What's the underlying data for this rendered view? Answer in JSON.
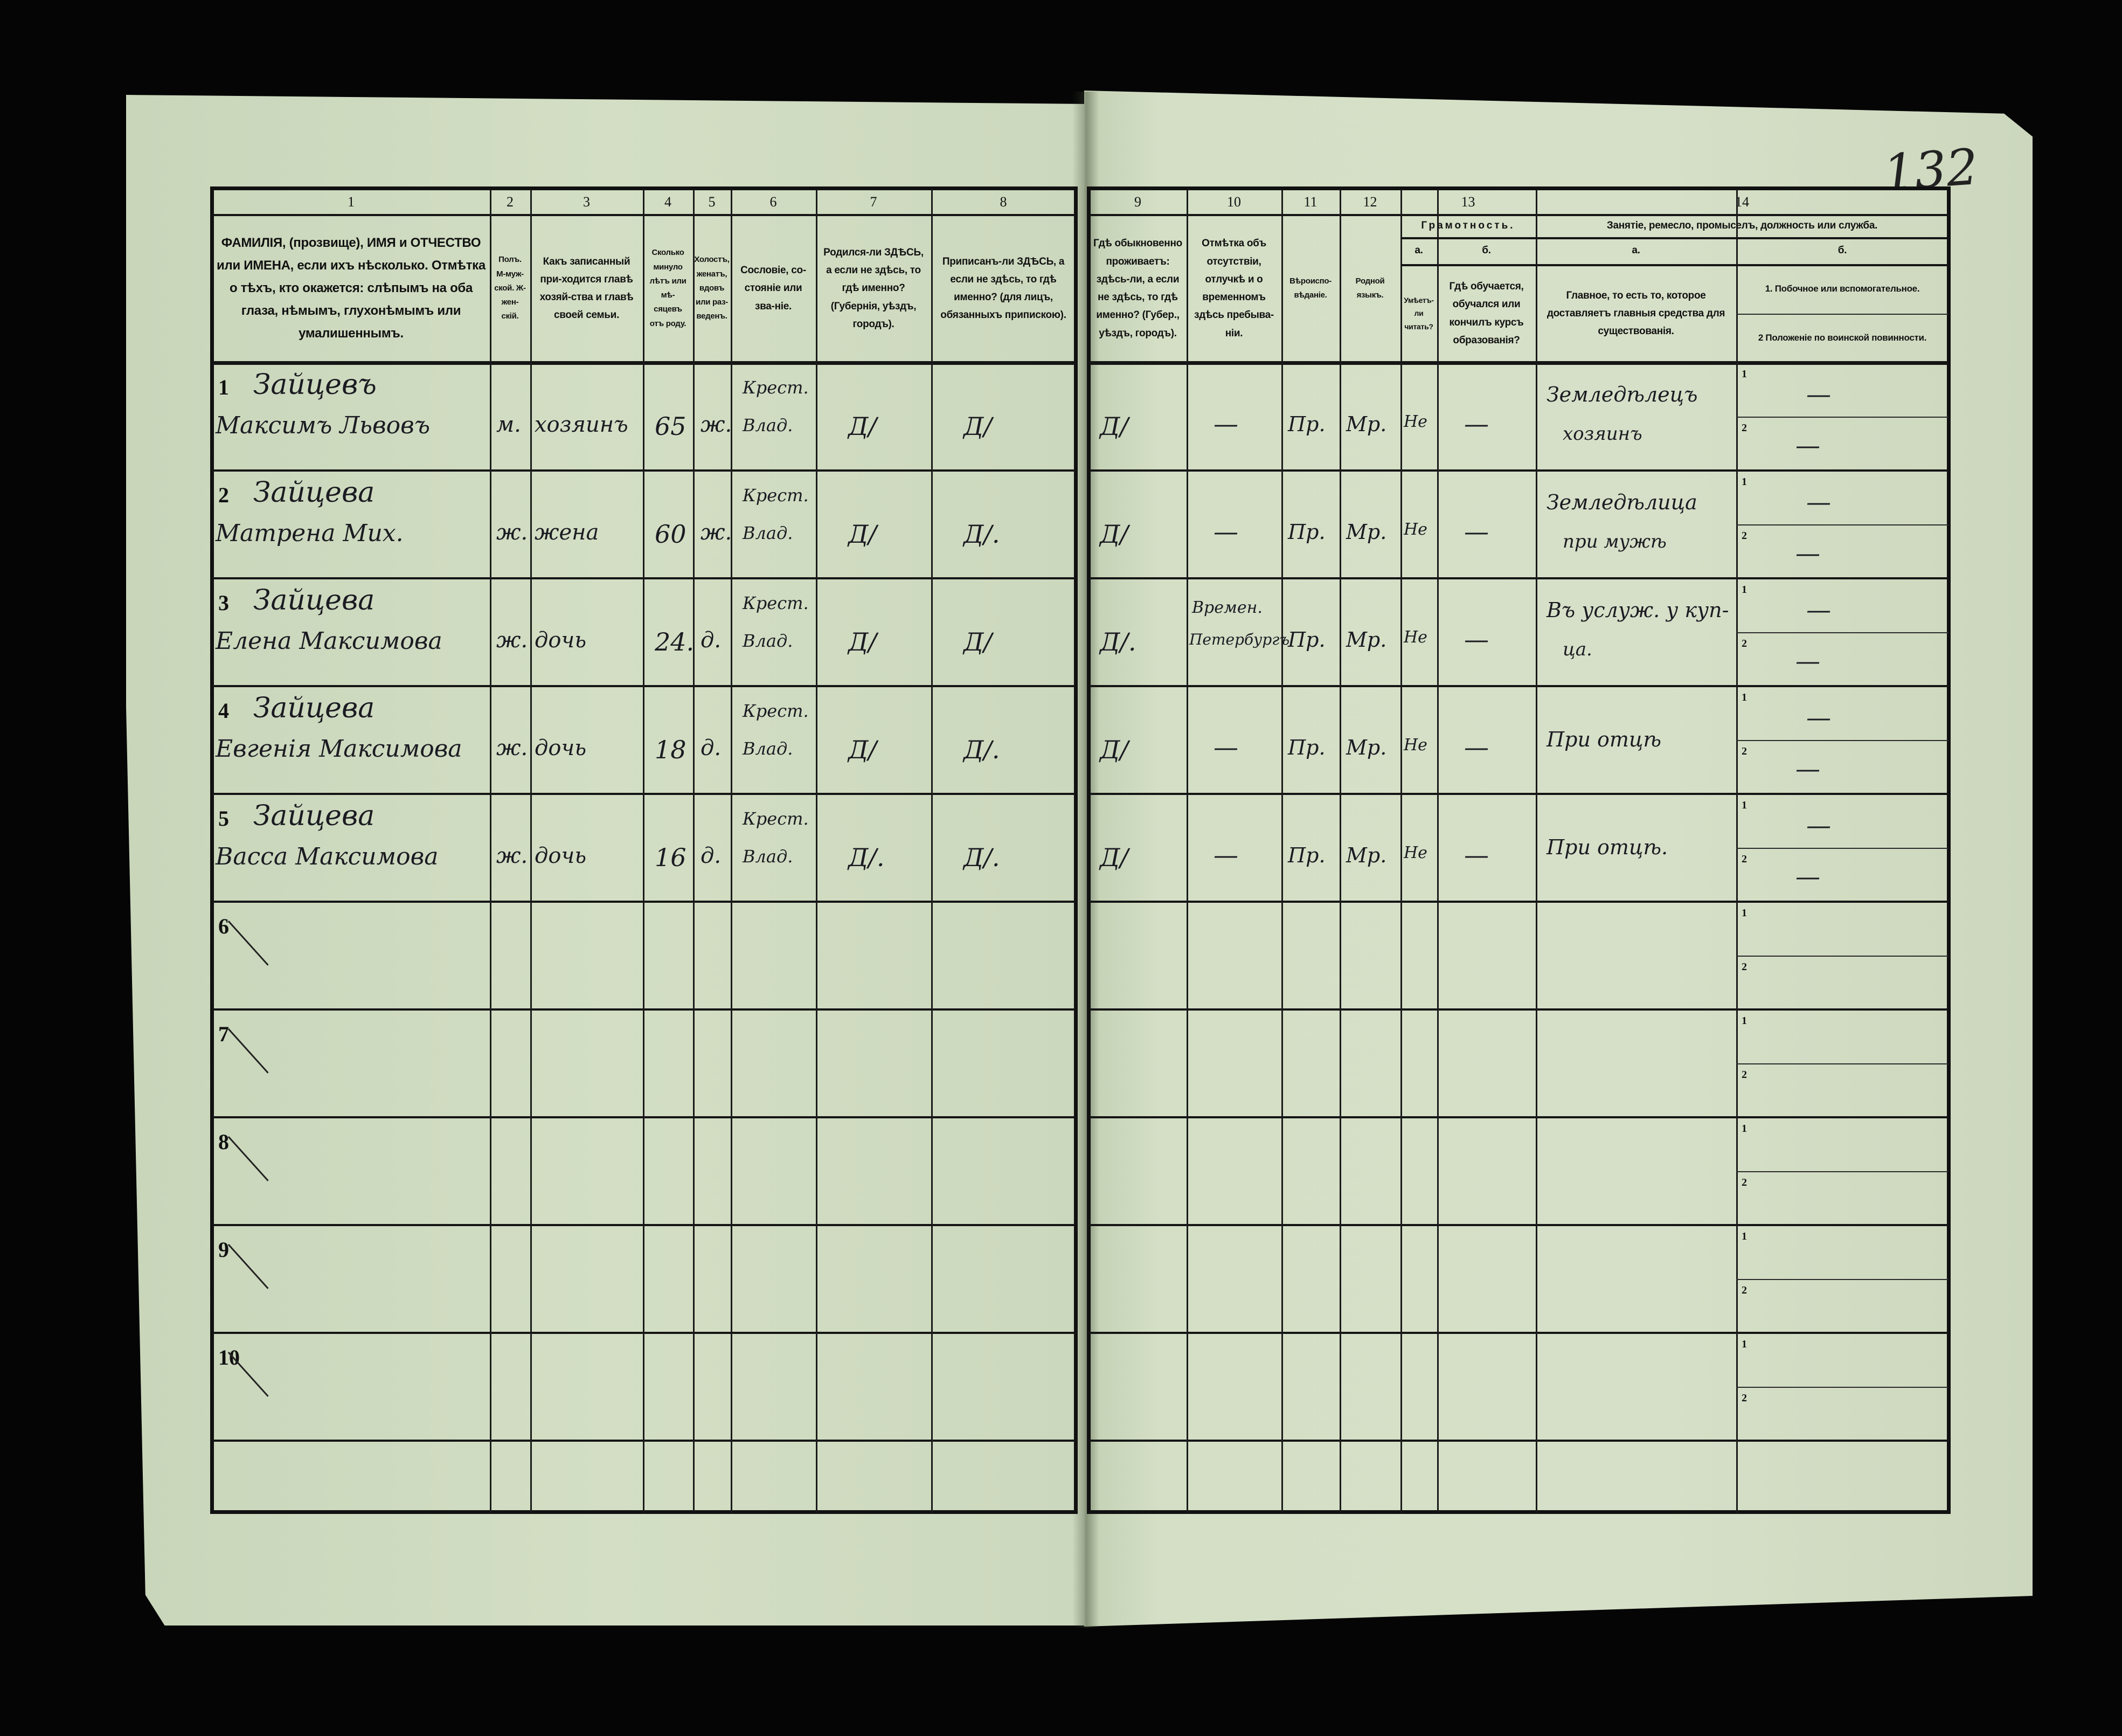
{
  "page_number": "132",
  "header": {
    "columns": [
      {
        "num": "1",
        "text": "ФАМИЛІЯ, (прозвище), ИМЯ и ОТЧЕСТВО или ИМЕНА, если ихъ нѣсколько. Отмѣтка о тѣхъ, кто окажется: слѣпымъ на оба глаза, нѣмымъ, глухонѣмымъ или умалишеннымъ."
      },
      {
        "num": "2",
        "text": "Полъ. М-муж-ской. Ж-жен-скій."
      },
      {
        "num": "3",
        "text": "Какъ записанный при-ходится главѣ хозяй-ства и главѣ своей семьи."
      },
      {
        "num": "4",
        "text": "Сколько минуло лѣтъ или мѣ-сяцевъ отъ роду."
      },
      {
        "num": "5",
        "text": "Холостъ, женатъ, вдовъ или раз-веденъ."
      },
      {
        "num": "6",
        "text": "Сословіе, со-стояніе или зва-ніе."
      },
      {
        "num": "7",
        "text": "Родился-ли ЗДѢСЬ, а если не здѣсь, то гдѣ именно? (Губернія, уѣздъ, городъ)."
      },
      {
        "num": "8",
        "text": "Приписанъ-ли ЗДѢСЬ, а если не здѣсь, то гдѣ именно? (для лицъ, обязанныхъ припискою)."
      },
      {
        "num": "9",
        "text": "Гдѣ обыкновенно проживаетъ: здѣсь-ли, а если не здѣсь, то гдѣ именно? (Губер., уѣздъ, городъ)."
      },
      {
        "num": "10",
        "text": "Отмѣтка объ отсутствіи, отлучкѣ и о временномъ здѣсь пребыва-ніи."
      },
      {
        "num": "11",
        "text": "Вѣроиспо-вѣданіе."
      },
      {
        "num": "12",
        "text": "Родной языкъ."
      }
    ],
    "col13": {
      "num": "13",
      "title": "Грамотность.",
      "a_label": "а.",
      "a_text": "Умѣетъ-ли читать?",
      "b_label": "б.",
      "b_text": "Гдѣ обучается, обучался или кончилъ курсъ образованія?"
    },
    "col14": {
      "num": "14",
      "title": "Занятіе, ремесло, промыселъ, должность или служба.",
      "a_label": "а.",
      "a_text": "Главное, то есть то, которое доставляетъ главныя средства для существованія.",
      "b_label": "б.",
      "b1_text": "1. Побочное или вспомогательное.",
      "b2_text": "2 Положеніе по воинской повинности."
    }
  },
  "sub_labels": [
    "1",
    "2"
  ],
  "rows": [
    {
      "n": "1",
      "surname": "Зайцевъ",
      "name": "Максимъ Львовъ",
      "sex": "м.",
      "relation": "хозяинъ",
      "age": "65",
      "marital": "ж.",
      "estate_1": "Крест.",
      "estate_2": "Влад.",
      "born": "Д/",
      "registered": "Д/",
      "residence": "Д/",
      "absence": "—",
      "religion": "Пр.",
      "language": "Мр.",
      "literate": "Не",
      "education": "—",
      "occupation_1": "Земледѣлецъ",
      "occupation_2": "хозяинъ",
      "side": "—",
      "military": "—"
    },
    {
      "n": "2",
      "surname": "Зайцева",
      "name": "Матрена Мих.",
      "sex": "ж.",
      "relation": "жена",
      "age": "60",
      "marital": "ж.",
      "estate_1": "Крест.",
      "estate_2": "Влад.",
      "born": "Д/",
      "registered": "Д/.",
      "residence": "Д/",
      "absence": "—",
      "religion": "Пр.",
      "language": "Мр.",
      "literate": "Не",
      "education": "—",
      "occupation_1": "Земледѣлица",
      "occupation_2": "при мужѣ",
      "side": "—",
      "military": "—"
    },
    {
      "n": "3",
      "surname": "Зайцева",
      "name": "Елена Максимова",
      "sex": "ж.",
      "relation": "дочь",
      "age": "24.",
      "marital": "д.",
      "estate_1": "Крест.",
      "estate_2": "Влад.",
      "born": "Д/",
      "registered": "Д/",
      "residence": "Д/.",
      "absence_1": "Времен.",
      "absence_2": "Петербургъ",
      "religion": "Пр.",
      "language": "Мр.",
      "literate": "Не",
      "education": "—",
      "occupation_1": "Въ услуж. у куп-",
      "occupation_2": "ца.",
      "side": "—",
      "military": "—"
    },
    {
      "n": "4",
      "surname": "Зайцева",
      "name": "Евгенія Максимова",
      "sex": "ж.",
      "relation": "дочь",
      "age": "18",
      "marital": "д.",
      "estate_1": "Крест.",
      "estate_2": "Влад.",
      "born": "Д/",
      "registered": "Д/.",
      "residence": "Д/",
      "absence": "—",
      "religion": "Пр.",
      "language": "Мр.",
      "literate": "Не",
      "education": "—",
      "occupation_1": "При отцѣ",
      "side": "—",
      "military": "—"
    },
    {
      "n": "5",
      "surname": "Зайцева",
      "name": "Васса Максимова",
      "sex": "ж.",
      "relation": "дочь",
      "age": "16",
      "marital": "д.",
      "estate_1": "Крест.",
      "estate_2": "Влад.",
      "born": "Д/.",
      "registered": "Д/.",
      "residence": "Д/",
      "absence": "—",
      "religion": "Пр.",
      "language": "Мр.",
      "literate": "Не",
      "education": "—",
      "occupation_1": "При отцѣ.",
      "side": "—",
      "military": "—"
    },
    {
      "n": "6"
    },
    {
      "n": "7"
    },
    {
      "n": "8"
    },
    {
      "n": "9"
    },
    {
      "n": "10"
    }
  ]
}
